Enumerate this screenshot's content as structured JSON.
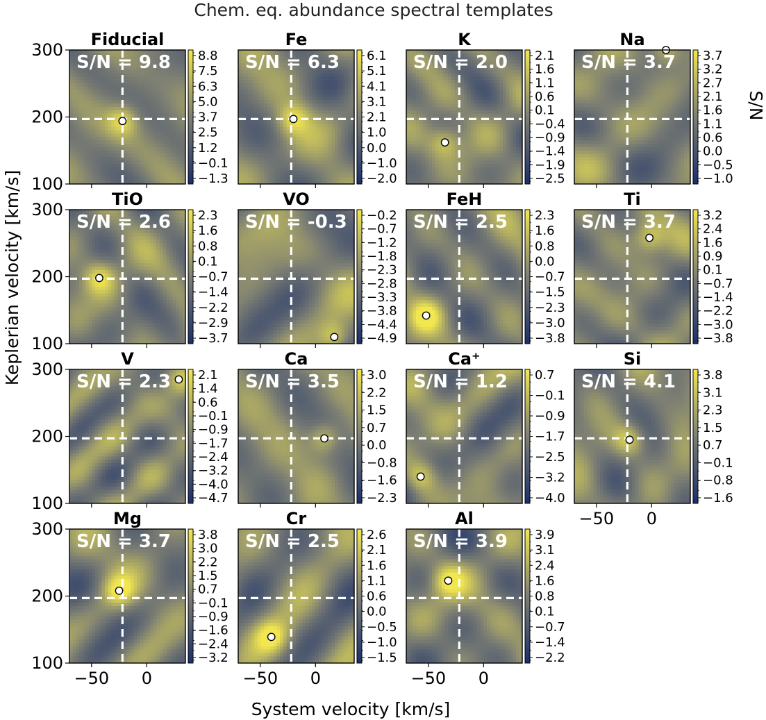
{
  "figure_title": "Chem. eq. abundance spectral templates",
  "colors": {
    "low": "#1a2f6b",
    "mid": "#7d7f73",
    "high": "#f2e74e",
    "crosshair": "#ffffff",
    "marker_fill": "#ffffff",
    "marker_edge": "#000000"
  },
  "chart_data": {
    "type": "heatmap",
    "title": "Chem. eq. abundance spectral templates",
    "xlabel": "System velocity [km/s]",
    "ylabel": "Keplerian velocity [km/s]",
    "colorbar_label": "S/N",
    "xlim": [
      -70,
      35
    ],
    "ylim": [
      100,
      300
    ],
    "xticks": [
      -50,
      0
    ],
    "xtick_labels": [
      "−50",
      "0"
    ],
    "yticks": [
      100,
      200,
      300
    ],
    "ytick_labels": [
      "100",
      "200",
      "300"
    ],
    "expected": {
      "vsys": -22,
      "kp": 197
    },
    "panels": [
      {
        "name": "Fiducial",
        "sn_text": "S/N = 9.8",
        "peak": [
          -22,
          194
        ],
        "cbar_ticks": [
          "8.8",
          "7.5",
          "6.3",
          "5.0",
          "3.7",
          "2.5",
          "1.2",
          "−0.1",
          "−1.3"
        ]
      },
      {
        "name": "Fe",
        "sn_text": "S/N = 6.3",
        "peak": [
          -20,
          197
        ],
        "cbar_ticks": [
          "6.1",
          "5.1",
          "4.1",
          "3.1",
          "2.1",
          "1.0",
          "0.0",
          "−1.0",
          "−2.0"
        ]
      },
      {
        "name": "K",
        "sn_text": "S/N = 2.0",
        "peak": [
          -35,
          162
        ],
        "cbar_ticks": [
          "2.1",
          "1.6",
          "1.1",
          "0.6",
          "0.1",
          "−0.4",
          "−0.9",
          "−1.4",
          "−1.9",
          "−2.5"
        ]
      },
      {
        "name": "Na",
        "sn_text": "S/N = 3.7",
        "peak": [
          13,
          300
        ],
        "cbar_ticks": [
          "3.7",
          "3.2",
          "2.7",
          "2.1",
          "1.6",
          "1.1",
          "0.6",
          "0.0",
          "−0.5",
          "−1.0"
        ]
      },
      {
        "name": "TiO",
        "sn_text": "S/N = 2.6",
        "peak": [
          -43,
          198
        ],
        "cbar_ticks": [
          "2.3",
          "1.6",
          "0.8",
          "0.1",
          "−0.7",
          "−1.4",
          "−2.2",
          "−2.9",
          "−3.7"
        ]
      },
      {
        "name": "VO",
        "sn_text": "S/N = -0.3",
        "peak": [
          17,
          110
        ],
        "cbar_ticks": [
          "−0.2",
          "−0.7",
          "−1.2",
          "−1.8",
          "−2.3",
          "−2.8",
          "−3.3",
          "−3.8",
          "−4.4",
          "−4.9"
        ]
      },
      {
        "name": "FeH",
        "sn_text": "S/N = 2.5",
        "peak": [
          -52,
          142
        ],
        "cbar_ticks": [
          "2.3",
          "1.6",
          "0.8",
          "0.0",
          "−0.7",
          "−1.5",
          "−2.3",
          "−3.0",
          "−3.8"
        ]
      },
      {
        "name": "Ti",
        "sn_text": "S/N = 3.7",
        "peak": [
          -2,
          258
        ],
        "cbar_ticks": [
          "3.2",
          "2.4",
          "1.6",
          "0.9",
          "0.1",
          "−0.7",
          "−1.4",
          "−2.2",
          "−3.0",
          "−3.8"
        ]
      },
      {
        "name": "V",
        "sn_text": "S/N = 2.3",
        "peak": [
          29,
          285
        ],
        "cbar_ticks": [
          "2.1",
          "1.4",
          "0.6",
          "−0.1",
          "−0.9",
          "−1.7",
          "−2.4",
          "−3.2",
          "−4.0",
          "−4.7"
        ]
      },
      {
        "name": "Ca",
        "sn_text": "S/N = 3.5",
        "peak": [
          8,
          197
        ],
        "cbar_ticks": [
          "3.0",
          "2.2",
          "1.5",
          "0.7",
          "0.0",
          "−0.8",
          "−1.6",
          "−2.3"
        ]
      },
      {
        "name": "Ca⁺",
        "sn_text": "S/N = 1.2",
        "peak": [
          -57,
          140
        ],
        "cbar_ticks": [
          "0.7",
          "−0.1",
          "−0.9",
          "−1.7",
          "−2.5",
          "−3.2",
          "−4.0"
        ]
      },
      {
        "name": "Si",
        "sn_text": "S/N = 4.1",
        "peak": [
          -20,
          195
        ],
        "cbar_ticks": [
          "3.8",
          "3.1",
          "2.3",
          "1.5",
          "0.7",
          "−0.1",
          "−0.8",
          "−1.6"
        ]
      },
      {
        "name": "Mg",
        "sn_text": "S/N = 3.7",
        "peak": [
          -25,
          208
        ],
        "cbar_ticks": [
          "3.8",
          "3.0",
          "2.2",
          "1.5",
          "0.7",
          "−0.1",
          "−0.9",
          "−1.6",
          "−2.4",
          "−3.2"
        ]
      },
      {
        "name": "Cr",
        "sn_text": "S/N = 2.5",
        "peak": [
          -40,
          139
        ],
        "cbar_ticks": [
          "2.6",
          "2.1",
          "1.6",
          "1.1",
          "0.6",
          "0.0",
          "−0.5",
          "−1.0",
          "−1.5"
        ]
      },
      {
        "name": "Al",
        "sn_text": "S/N = 3.9",
        "peak": [
          -32,
          223
        ],
        "cbar_ticks": [
          "3.9",
          "3.1",
          "2.4",
          "1.6",
          "0.8",
          "0.1",
          "−0.7",
          "−1.4",
          "−2.2"
        ]
      }
    ]
  }
}
